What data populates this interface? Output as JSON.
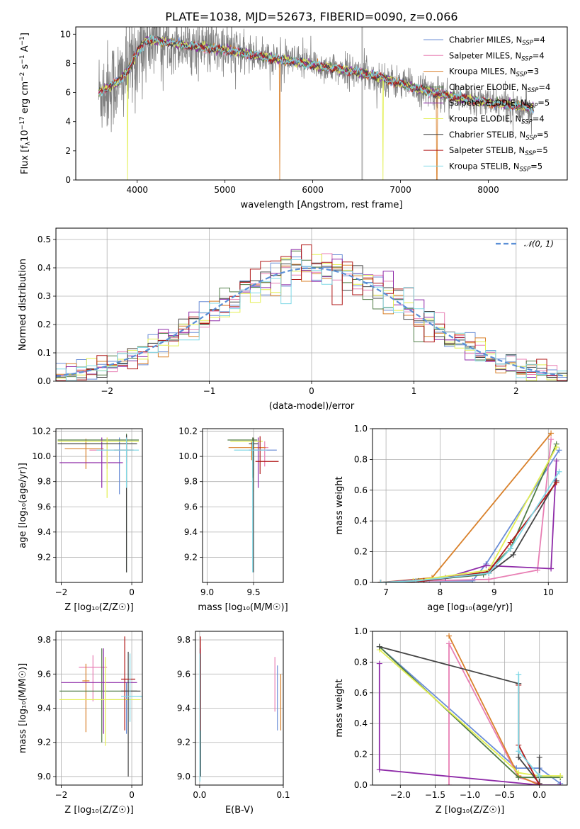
{
  "title": "PLATE=1038, MJD=52673, FIBERID=0090, z=0.066",
  "colors": {
    "data": "#808080",
    "Chabrier MILES": "#6b8ed6",
    "Salpeter MILES": "#e87fb4",
    "Kroupa MILES": "#d9812b",
    "Chabrier ELODIE": "#4f7b46",
    "Salpeter ELODIE": "#8e2aa8",
    "Kroupa ELODIE": "#e3ef52",
    "Chabrier STELIB": "#444444",
    "Salpeter STELIB": "#b01818",
    "Kroupa STELIB": "#7fd8e6",
    "normal": "#5b8fd6"
  },
  "chart_data": [
    {
      "id": "spectrum",
      "type": "line",
      "xlabel": "wavelength [Angstrom, rest frame]",
      "ylabel_pre": "Flux [f",
      "ylabel_sub": "λ",
      "ylabel_mid": "10",
      "ylabel_sup1": "−17",
      "ylabel_mid2": " erg cm",
      "ylabel_sup2": "−2",
      "ylabel_mid3": " s",
      "ylabel_sup3": "−1",
      "ylabel_post": " A",
      "ylabel_sup4": "−1",
      "ylabel_end": "]",
      "xlim": [
        3300,
        8900
      ],
      "ylim": [
        0,
        10.5
      ],
      "xticks": [
        4000,
        5000,
        6000,
        7000,
        8000
      ],
      "yticks": [
        0,
        2,
        4,
        6,
        8,
        10
      ],
      "continuum": [
        [
          3560,
          6.0
        ],
        [
          3650,
          6.3
        ],
        [
          3800,
          6.8
        ],
        [
          3900,
          7.6
        ],
        [
          4000,
          8.7
        ],
        [
          4100,
          9.6
        ],
        [
          4300,
          9.5
        ],
        [
          4600,
          9.2
        ],
        [
          5000,
          8.9
        ],
        [
          5500,
          8.4
        ],
        [
          6000,
          7.9
        ],
        [
          6500,
          7.4
        ],
        [
          6800,
          7.0
        ],
        [
          7000,
          6.6
        ],
        [
          7300,
          6.1
        ],
        [
          7600,
          5.7
        ],
        [
          8000,
          5.3
        ],
        [
          8500,
          4.95
        ]
      ],
      "legend": [
        {
          "model": "Chabrier MILES",
          "label": "Chabrier MILES, N",
          "sub": "SSP",
          "eq": "=4"
        },
        {
          "model": "Salpeter MILES",
          "label": "Salpeter MILES, N",
          "sub": "SSP",
          "eq": "=4"
        },
        {
          "model": "Kroupa MILES",
          "label": "Kroupa MILES, N",
          "sub": "SSP",
          "eq": "=3"
        },
        {
          "model": "Chabrier ELODIE",
          "label": "Chabrier ELODIE, N",
          "sub": "SSP",
          "eq": "=4"
        },
        {
          "model": "Salpeter ELODIE",
          "label": "Salpeter ELODIE, N",
          "sub": "SSP",
          "eq": "=5"
        },
        {
          "model": "Kroupa ELODIE",
          "label": "Kroupa ELODIE, N",
          "sub": "SSP",
          "eq": "=4"
        },
        {
          "model": "Chabrier STELIB",
          "label": "Chabrier STELIB, N",
          "sub": "SSP",
          "eq": "=5"
        },
        {
          "model": "Salpeter STELIB",
          "label": "Salpeter STELIB, N",
          "sub": "SSP",
          "eq": "=5"
        },
        {
          "model": "Kroupa STELIB",
          "label": "Kroupa STELIB, N",
          "sub": "SSP",
          "eq": "=5"
        }
      ]
    },
    {
      "id": "residuals",
      "type": "histogram",
      "xlabel": "(data-model)/error",
      "ylabel": "Normed distribution",
      "xlim": [
        -2.5,
        2.5
      ],
      "ylim": [
        0,
        0.54
      ],
      "xticks": [
        -2,
        -1,
        0,
        1,
        2
      ],
      "yticks": [
        0.0,
        0.1,
        0.2,
        0.3,
        0.4,
        0.5
      ],
      "legend": "𝒩(0, 1)",
      "bin_width": 0.1
    },
    {
      "id": "age-vs-Z",
      "type": "scatter",
      "xlabel": "Z [log₁₀(Z/Z☉)]",
      "ylabel": "age  [log₁₀(age/yr)]",
      "xlim": [
        -2.15,
        0.3
      ],
      "ylim": [
        9.0,
        10.22
      ],
      "xticks": [
        -2,
        0
      ],
      "yticks": [
        9.2,
        9.4,
        9.6,
        9.8,
        10.0,
        10.2
      ],
      "points": [
        {
          "model": "Chabrier MILES",
          "x": -0.35,
          "xerr": [
            0.15,
            0.35
          ],
          "y": 10.05,
          "yerr": [
            0.35,
            0.1
          ]
        },
        {
          "model": "Salpeter MILES",
          "x": -0.7,
          "xerr": [
            0.5,
            0.3
          ],
          "y": 10.05,
          "yerr": [
            0.15,
            0.1
          ]
        },
        {
          "model": "Kroupa MILES",
          "x": -1.3,
          "xerr": [
            0.6,
            0.5
          ],
          "y": 10.06,
          "yerr": [
            0.16,
            0.08
          ]
        },
        {
          "model": "Chabrier ELODIE",
          "x": -0.15,
          "xerr": [
            1.95,
            0.35
          ],
          "y": 10.13,
          "yerr": [
            1.05,
            0.05
          ]
        },
        {
          "model": "Salpeter ELODIE",
          "x": -0.85,
          "xerr": [
            1.2,
            0.6
          ],
          "y": 9.95,
          "yerr": [
            0.2,
            0.2
          ]
        },
        {
          "model": "Kroupa ELODIE",
          "x": -0.7,
          "xerr": [
            1.4,
            0.9
          ],
          "y": 10.12,
          "yerr": [
            0.45,
            0.03
          ]
        },
        {
          "model": "Chabrier STELIB",
          "x": -0.15,
          "xerr": [
            1.95,
            0.3
          ],
          "y": 10.1,
          "yerr": [
            1.02,
            0.07
          ]
        },
        {
          "model": "Salpeter STELIB",
          "x": -0.15,
          "xerr": [
            0.35,
            0.2
          ],
          "y": 10.05,
          "yerr": [
            0.1,
            0.1
          ]
        },
        {
          "model": "Kroupa STELIB",
          "x": -0.15,
          "xerr": [
            0.85,
            0.35
          ],
          "y": 10.05,
          "yerr": [
            0.3,
            0.1
          ]
        }
      ]
    },
    {
      "id": "age-vs-mass",
      "type": "scatter",
      "xlabel": "mass [log₁₀(M/M☉)]",
      "ylabel": "",
      "xlim": [
        8.95,
        9.82
      ],
      "ylim": [
        9.0,
        10.22
      ],
      "xticks": [
        9.0,
        9.5
      ],
      "yticks": [
        9.2,
        9.4,
        9.6,
        9.8,
        10.0,
        10.2
      ],
      "points": [
        {
          "model": "Chabrier MILES",
          "x": 9.5,
          "xerr": [
            0.02,
            0.25
          ],
          "y": 10.05,
          "yerr": [
            0.2,
            0.05
          ]
        },
        {
          "model": "Salpeter MILES",
          "x": 9.62,
          "xerr": [
            0.08,
            0.04
          ],
          "y": 10.07,
          "yerr": [
            0.15,
            0.05
          ]
        },
        {
          "model": "Kroupa MILES",
          "x": 9.48,
          "xerr": [
            0.25,
            0.15
          ],
          "y": 10.07,
          "yerr": [
            0.1,
            0.05
          ]
        },
        {
          "model": "Chabrier ELODIE",
          "x": 9.49,
          "xerr": [
            0.27,
            0.05
          ],
          "y": 10.13,
          "yerr": [
            0.3,
            0.02
          ]
        },
        {
          "model": "Salpeter ELODIE",
          "x": 9.55,
          "xerr": [
            0.1,
            0.05
          ],
          "y": 10.05,
          "yerr": [
            0.3,
            0.1
          ]
        },
        {
          "model": "Kroupa ELODIE",
          "x": 9.5,
          "xerr": [
            0.25,
            0.1
          ],
          "y": 10.12,
          "yerr": [
            0.4,
            0.03
          ]
        },
        {
          "model": "Chabrier STELIB",
          "x": 9.5,
          "xerr": [
            0.05,
            0.05
          ],
          "y": 10.1,
          "yerr": [
            1.02,
            0.05
          ]
        },
        {
          "model": "Salpeter STELIB",
          "x": 9.57,
          "xerr": [
            0.05,
            0.2
          ],
          "y": 9.96,
          "yerr": [
            0.1,
            0.2
          ]
        },
        {
          "model": "Kroupa STELIB",
          "x": 9.49,
          "xerr": [
            0.2,
            0.15
          ],
          "y": 10.05,
          "yerr": [
            0.97,
            0.07
          ]
        }
      ]
    },
    {
      "id": "mass-weight-vs-age",
      "type": "line",
      "xlabel": "age  [log₁₀(age/yr)]",
      "ylabel": "mass weight",
      "xlim": [
        6.75,
        10.35
      ],
      "ylim": [
        0,
        1.0
      ],
      "xticks": [
        7,
        8,
        9,
        10
      ],
      "yticks": [
        0.0,
        0.2,
        0.4,
        0.6,
        0.8,
        1.0
      ],
      "series": [
        {
          "model": "Chabrier MILES",
          "x": [
            6.9,
            7.8,
            8.6,
            8.85,
            10.2
          ],
          "y": [
            0.0,
            0.01,
            0.01,
            0.12,
            0.86
          ]
        },
        {
          "model": "Salpeter MILES",
          "x": [
            6.9,
            7.7,
            8.9,
            9.8,
            10.05
          ],
          "y": [
            0.0,
            0.01,
            0.02,
            0.08,
            0.93
          ]
        },
        {
          "model": "Kroupa MILES",
          "x": [
            6.9,
            7.85,
            10.05
          ],
          "y": [
            0.0,
            0.03,
            0.97
          ]
        },
        {
          "model": "Chabrier ELODIE",
          "x": [
            6.9,
            7.6,
            8.8,
            9.3,
            10.15
          ],
          "y": [
            0.0,
            0.01,
            0.05,
            0.22,
            0.9
          ]
        },
        {
          "model": "Salpeter ELODIE",
          "x": [
            6.9,
            8.1,
            8.85,
            10.05,
            10.15
          ],
          "y": [
            0.0,
            0.03,
            0.11,
            0.09,
            0.79
          ]
        },
        {
          "model": "Kroupa ELODIE",
          "x": [
            6.9,
            7.5,
            8.9,
            10.15
          ],
          "y": [
            0.0,
            0.01,
            0.08,
            0.88
          ]
        },
        {
          "model": "Chabrier STELIB",
          "x": [
            6.9,
            7.7,
            8.9,
            9.35,
            10.15
          ],
          "y": [
            0.0,
            0.01,
            0.06,
            0.18,
            0.66
          ]
        },
        {
          "model": "Salpeter STELIB",
          "x": [
            6.9,
            7.7,
            8.9,
            9.3,
            10.15
          ],
          "y": [
            0.0,
            0.01,
            0.07,
            0.26,
            0.65
          ]
        },
        {
          "model": "Kroupa STELIB",
          "x": [
            6.9,
            7.55,
            8.9,
            9.3,
            10.2
          ],
          "y": [
            0.0,
            0.01,
            0.06,
            0.22,
            0.72
          ]
        }
      ]
    },
    {
      "id": "mass-vs-Z",
      "type": "scatter",
      "xlabel": "Z [log₁₀(Z/Z☉)]",
      "ylabel": "mass [log₁₀(M/M☉)]",
      "xlim": [
        -2.15,
        0.3
      ],
      "ylim": [
        8.95,
        9.85
      ],
      "xticks": [
        -2,
        0
      ],
      "yticks": [
        9.0,
        9.2,
        9.4,
        9.6,
        9.8
      ],
      "points": [
        {
          "model": "Chabrier MILES",
          "x": -0.15,
          "xerr": [
            0.5,
            0.1
          ],
          "y": 9.45,
          "yerr": [
            0.2,
            0.1
          ]
        },
        {
          "model": "Salpeter MILES",
          "x": -1.1,
          "xerr": [
            0.4,
            0.4
          ],
          "y": 9.64,
          "yerr": [
            0.2,
            0.07
          ]
        },
        {
          "model": "Kroupa MILES",
          "x": -1.3,
          "xerr": [
            0.1,
            0.1
          ],
          "y": 9.56,
          "yerr": [
            0.3,
            0.1
          ]
        },
        {
          "model": "Chabrier ELODIE",
          "x": -0.85,
          "xerr": [
            1.2,
            1.0
          ],
          "y": 9.5,
          "yerr": [
            0.3,
            0.25
          ]
        },
        {
          "model": "Salpeter ELODIE",
          "x": -0.8,
          "xerr": [
            1.2,
            0.95
          ],
          "y": 9.55,
          "yerr": [
            0.3,
            0.2
          ]
        },
        {
          "model": "Kroupa ELODIE",
          "x": -0.75,
          "xerr": [
            1.3,
            1.0
          ],
          "y": 9.45,
          "yerr": [
            0.27,
            0.25
          ]
        },
        {
          "model": "Chabrier STELIB",
          "x": -0.1,
          "xerr": [
            0.2,
            0.35
          ],
          "y": 9.5,
          "yerr": [
            0.5,
            0.23
          ]
        },
        {
          "model": "Salpeter STELIB",
          "x": -0.2,
          "xerr": [
            0.1,
            0.3
          ],
          "y": 9.57,
          "yerr": [
            0.3,
            0.25
          ]
        },
        {
          "model": "Kroupa STELIB",
          "x": -0.05,
          "xerr": [
            0.25,
            0.35
          ],
          "y": 9.47,
          "yerr": [
            0.15,
            0.25
          ]
        }
      ]
    },
    {
      "id": "mass-vs-ebv",
      "type": "scatter",
      "xlabel": "E(B-V)",
      "ylabel": "",
      "xlim": [
        -0.005,
        0.1
      ],
      "ylim": [
        8.95,
        9.85
      ],
      "xticks": [
        0.0,
        0.1
      ],
      "yticks": [
        9.0,
        9.2,
        9.4,
        9.6,
        9.8
      ],
      "points": [
        {
          "model": "Chabrier MILES",
          "x": 0.093,
          "y": 9.45,
          "yerr": [
            0.18,
            0.2
          ]
        },
        {
          "model": "Salpeter MILES",
          "x": 0.09,
          "y": 9.55,
          "yerr": [
            0.17,
            0.15
          ]
        },
        {
          "model": "Kroupa MILES",
          "x": 0.097,
          "y": 9.45,
          "yerr": [
            0.18,
            0.15
          ]
        },
        {
          "model": "Chabrier ELODIE",
          "x": 0.001,
          "y": 9.5,
          "yerr": [
            0.5,
            0.2
          ]
        },
        {
          "model": "Salpeter ELODIE",
          "x": 0.0008,
          "y": 9.55,
          "yerr": [
            0.2,
            0.2
          ]
        },
        {
          "model": "Kroupa ELODIE",
          "x": 0.0006,
          "y": 9.45,
          "yerr": [
            0.25,
            0.2
          ]
        },
        {
          "model": "Chabrier STELIB",
          "x": 0.0012,
          "y": 9.5,
          "yerr": [
            0.5,
            0.22
          ]
        },
        {
          "model": "Salpeter STELIB",
          "x": 0.001,
          "y": 9.57,
          "yerr": [
            0.3,
            0.25
          ]
        },
        {
          "model": "Kroupa STELIB",
          "x": 0.0004,
          "y": 9.47,
          "yerr": [
            0.5,
            0.25
          ]
        }
      ]
    },
    {
      "id": "mass-weight-vs-Z",
      "type": "line",
      "xlabel": "Z [log₁₀(Z/Z☉)]",
      "ylabel": "mass weight",
      "xlim": [
        -2.4,
        0.4
      ],
      "ylim": [
        0,
        1.0
      ],
      "xticks": [
        -2.0,
        -1.5,
        -1.0,
        -0.5,
        0.0
      ],
      "yticks": [
        0.0,
        0.2,
        0.4,
        0.6,
        0.8,
        1.0
      ],
      "series": [
        {
          "model": "Chabrier MILES",
          "x": [
            -2.3,
            -0.33,
            0.0,
            0.3
          ],
          "y": [
            0.9,
            0.11,
            0.11,
            0.01
          ]
        },
        {
          "model": "Salpeter MILES",
          "x": [
            -1.3,
            -1.3,
            -0.3,
            0.0
          ],
          "y": [
            0.0,
            0.92,
            0.05,
            0.01
          ]
        },
        {
          "model": "Kroupa MILES",
          "x": [
            -1.3,
            -0.3,
            0.0
          ],
          "y": [
            0.97,
            0.06,
            0.0
          ]
        },
        {
          "model": "Chabrier ELODIE",
          "x": [
            -2.3,
            -0.3,
            0.0,
            0.3
          ],
          "y": [
            0.9,
            0.05,
            0.05,
            0.05
          ]
        },
        {
          "model": "Salpeter ELODIE",
          "x": [
            -2.3,
            -2.3,
            0.0,
            0.3
          ],
          "y": [
            0.79,
            0.1,
            0.0,
            0.0
          ]
        },
        {
          "model": "Kroupa ELODIE",
          "x": [
            -2.3,
            -0.3,
            0.0,
            0.3
          ],
          "y": [
            0.88,
            0.08,
            0.06,
            0.06
          ]
        },
        {
          "model": "Chabrier STELIB",
          "x": [
            -2.3,
            -0.3,
            -0.3,
            0.0,
            0.0
          ],
          "y": [
            0.9,
            0.66,
            0.18,
            0.01,
            0.18
          ]
        },
        {
          "model": "Salpeter STELIB",
          "x": [
            -0.3,
            -0.3,
            0.0
          ],
          "y": [
            0.65,
            0.26,
            0.0
          ]
        },
        {
          "model": "Kroupa STELIB",
          "x": [
            -0.3,
            -0.3,
            0.0
          ],
          "y": [
            0.72,
            0.22,
            0.06
          ]
        }
      ]
    }
  ]
}
